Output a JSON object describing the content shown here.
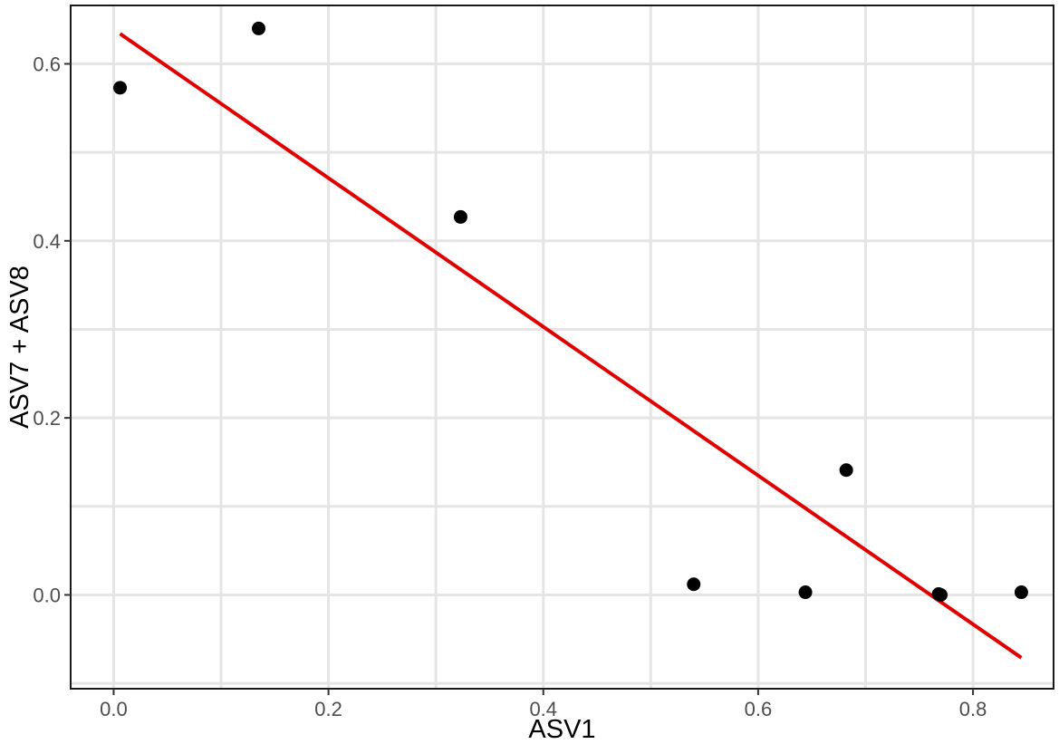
{
  "chart_data": {
    "type": "scatter",
    "title": "",
    "xlabel": "ASV1",
    "ylabel": "ASV7 + ASV8",
    "xlim": [
      -0.04,
      0.875
    ],
    "ylim": [
      -0.106,
      0.666
    ],
    "x_ticks": [
      0.0,
      0.2,
      0.4,
      0.6,
      0.8
    ],
    "x_tick_labels": [
      "0.0",
      "0.2",
      "0.4",
      "0.6",
      "0.8"
    ],
    "y_ticks": [
      0.0,
      0.2,
      0.4,
      0.6
    ],
    "y_tick_labels": [
      "0.0",
      "0.2",
      "0.4",
      "0.6"
    ],
    "grid": true,
    "points": [
      {
        "x": 0.006,
        "y": 0.573
      },
      {
        "x": 0.135,
        "y": 0.64
      },
      {
        "x": 0.323,
        "y": 0.427
      },
      {
        "x": 0.54,
        "y": 0.012
      },
      {
        "x": 0.644,
        "y": 0.003
      },
      {
        "x": 0.682,
        "y": 0.141
      },
      {
        "x": 0.768,
        "y": 0.001
      },
      {
        "x": 0.77,
        "y": 0.0
      },
      {
        "x": 0.845,
        "y": 0.003
      }
    ],
    "fit_line": {
      "x": [
        0.006,
        0.845
      ],
      "y": [
        0.634,
        -0.071
      ]
    },
    "colors": {
      "points": "#000000",
      "fit_line": "#e00000",
      "grid": "#e5e5e5"
    }
  }
}
